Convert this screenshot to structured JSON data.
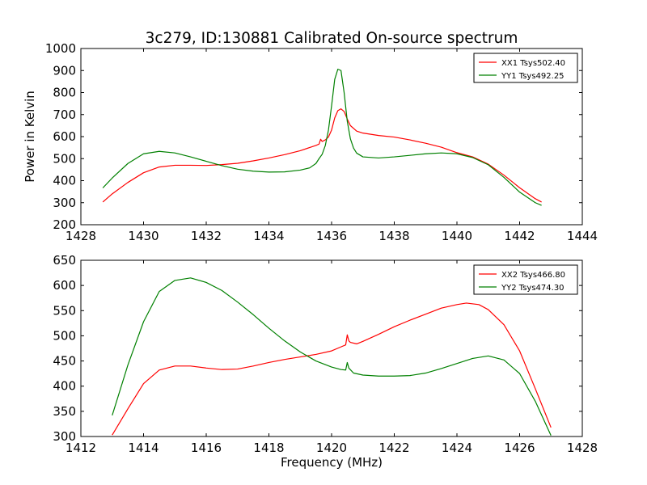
{
  "figure": {
    "title": "3c279, ID:130881 Calibrated On-source spectrum"
  },
  "colors": {
    "xx": "#ff0000",
    "yy": "#008000",
    "axis": "#000000",
    "background": "#ffffff"
  },
  "chart_data": [
    {
      "type": "line",
      "title": "3c279, ID:130881 Calibrated On-source spectrum",
      "xlabel": "",
      "ylabel": "Power in Kelvin",
      "xlim": [
        1428,
        1444
      ],
      "ylim": [
        200,
        1000
      ],
      "xticks": [
        1428,
        1430,
        1432,
        1434,
        1436,
        1438,
        1440,
        1442,
        1444
      ],
      "yticks": [
        200,
        300,
        400,
        500,
        600,
        700,
        800,
        900,
        1000
      ],
      "grid": false,
      "legend_position": "top-right",
      "series": [
        {
          "name": "XX1 Tsys502.40",
          "color": "#ff0000",
          "points": [
            [
              1428.7,
              303
            ],
            [
              1429.0,
              340
            ],
            [
              1429.5,
              392
            ],
            [
              1430.0,
              436
            ],
            [
              1430.5,
              462
            ],
            [
              1431.0,
              470
            ],
            [
              1431.5,
              470
            ],
            [
              1432.0,
              469
            ],
            [
              1432.5,
              473
            ],
            [
              1433.0,
              479
            ],
            [
              1433.5,
              490
            ],
            [
              1434.0,
              503
            ],
            [
              1434.5,
              518
            ],
            [
              1435.0,
              536
            ],
            [
              1435.5,
              560
            ],
            [
              1435.6,
              566
            ],
            [
              1435.65,
              588
            ],
            [
              1435.7,
              578
            ],
            [
              1435.8,
              585
            ],
            [
              1435.9,
              598
            ],
            [
              1436.0,
              630
            ],
            [
              1436.1,
              685
            ],
            [
              1436.2,
              718
            ],
            [
              1436.3,
              726
            ],
            [
              1436.4,
              714
            ],
            [
              1436.5,
              680
            ],
            [
              1436.6,
              650
            ],
            [
              1436.8,
              625
            ],
            [
              1437.0,
              616
            ],
            [
              1437.5,
              605
            ],
            [
              1438.0,
              598
            ],
            [
              1438.5,
              585
            ],
            [
              1439.0,
              570
            ],
            [
              1439.5,
              552
            ],
            [
              1440.0,
              527
            ],
            [
              1440.5,
              508
            ],
            [
              1441.0,
              475
            ],
            [
              1441.5,
              425
            ],
            [
              1442.0,
              368
            ],
            [
              1442.5,
              318
            ],
            [
              1442.7,
              303
            ]
          ]
        },
        {
          "name": "YY1 Tsys492.25",
          "color": "#008000",
          "points": [
            [
              1428.7,
              367
            ],
            [
              1429.0,
              412
            ],
            [
              1429.5,
              478
            ],
            [
              1430.0,
              522
            ],
            [
              1430.5,
              533
            ],
            [
              1431.0,
              526
            ],
            [
              1431.5,
              508
            ],
            [
              1432.0,
              488
            ],
            [
              1432.5,
              468
            ],
            [
              1433.0,
              452
            ],
            [
              1433.5,
              443
            ],
            [
              1434.0,
              439
            ],
            [
              1434.5,
              440
            ],
            [
              1435.0,
              448
            ],
            [
              1435.3,
              458
            ],
            [
              1435.5,
              478
            ],
            [
              1435.6,
              500
            ],
            [
              1435.7,
              520
            ],
            [
              1435.8,
              560
            ],
            [
              1435.9,
              630
            ],
            [
              1436.0,
              740
            ],
            [
              1436.1,
              860
            ],
            [
              1436.2,
              906
            ],
            [
              1436.3,
              900
            ],
            [
              1436.4,
              800
            ],
            [
              1436.5,
              670
            ],
            [
              1436.6,
              590
            ],
            [
              1436.7,
              548
            ],
            [
              1436.8,
              525
            ],
            [
              1437.0,
              508
            ],
            [
              1437.5,
              503
            ],
            [
              1438.0,
              508
            ],
            [
              1438.5,
              515
            ],
            [
              1439.0,
              522
            ],
            [
              1439.5,
              526
            ],
            [
              1440.0,
              522
            ],
            [
              1440.5,
              505
            ],
            [
              1441.0,
              472
            ],
            [
              1441.5,
              415
            ],
            [
              1442.0,
              348
            ],
            [
              1442.5,
              300
            ],
            [
              1442.7,
              288
            ]
          ]
        }
      ]
    },
    {
      "type": "line",
      "title": "",
      "xlabel": "Frequency (MHz)",
      "ylabel": "",
      "xlim": [
        1412,
        1428
      ],
      "ylim": [
        300,
        650
      ],
      "xticks": [
        1412,
        1414,
        1416,
        1418,
        1420,
        1422,
        1424,
        1426,
        1428
      ],
      "yticks": [
        300,
        350,
        400,
        450,
        500,
        550,
        600,
        650
      ],
      "grid": false,
      "legend_position": "top-right",
      "series": [
        {
          "name": "XX2 Tsys466.80",
          "color": "#ff0000",
          "points": [
            [
              1413.0,
              303
            ],
            [
              1413.5,
              355
            ],
            [
              1414.0,
              405
            ],
            [
              1414.5,
              432
            ],
            [
              1415.0,
              440
            ],
            [
              1415.5,
              440
            ],
            [
              1416.0,
              436
            ],
            [
              1416.5,
              433
            ],
            [
              1417.0,
              434
            ],
            [
              1417.5,
              440
            ],
            [
              1418.0,
              447
            ],
            [
              1418.5,
              453
            ],
            [
              1419.0,
              458
            ],
            [
              1419.5,
              463
            ],
            [
              1420.0,
              470
            ],
            [
              1420.3,
              478
            ],
            [
              1420.45,
              482
            ],
            [
              1420.5,
              502
            ],
            [
              1420.55,
              490
            ],
            [
              1420.6,
              487
            ],
            [
              1420.8,
              484
            ],
            [
              1421.0,
              489
            ],
            [
              1421.5,
              503
            ],
            [
              1422.0,
              518
            ],
            [
              1422.5,
              531
            ],
            [
              1423.0,
              543
            ],
            [
              1423.5,
              555
            ],
            [
              1424.0,
              562
            ],
            [
              1424.3,
              565
            ],
            [
              1424.7,
              562
            ],
            [
              1425.0,
              552
            ],
            [
              1425.5,
              522
            ],
            [
              1426.0,
              470
            ],
            [
              1426.5,
              395
            ],
            [
              1427.0,
              318
            ]
          ]
        },
        {
          "name": "YY2 Tsys474.30",
          "color": "#008000",
          "points": [
            [
              1413.0,
              342
            ],
            [
              1413.5,
              442
            ],
            [
              1414.0,
              528
            ],
            [
              1414.5,
              588
            ],
            [
              1415.0,
              610
            ],
            [
              1415.5,
              615
            ],
            [
              1416.0,
              606
            ],
            [
              1416.5,
              590
            ],
            [
              1417.0,
              567
            ],
            [
              1417.5,
              542
            ],
            [
              1418.0,
              515
            ],
            [
              1418.5,
              490
            ],
            [
              1419.0,
              468
            ],
            [
              1419.5,
              450
            ],
            [
              1420.0,
              438
            ],
            [
              1420.3,
              433
            ],
            [
              1420.45,
              432
            ],
            [
              1420.5,
              447
            ],
            [
              1420.55,
              436
            ],
            [
              1420.7,
              426
            ],
            [
              1421.0,
              422
            ],
            [
              1421.5,
              420
            ],
            [
              1422.0,
              420
            ],
            [
              1422.5,
              421
            ],
            [
              1423.0,
              426
            ],
            [
              1423.5,
              435
            ],
            [
              1424.0,
              445
            ],
            [
              1424.5,
              455
            ],
            [
              1425.0,
              460
            ],
            [
              1425.5,
              452
            ],
            [
              1426.0,
              425
            ],
            [
              1426.5,
              370
            ],
            [
              1427.0,
              302
            ]
          ]
        }
      ]
    }
  ]
}
